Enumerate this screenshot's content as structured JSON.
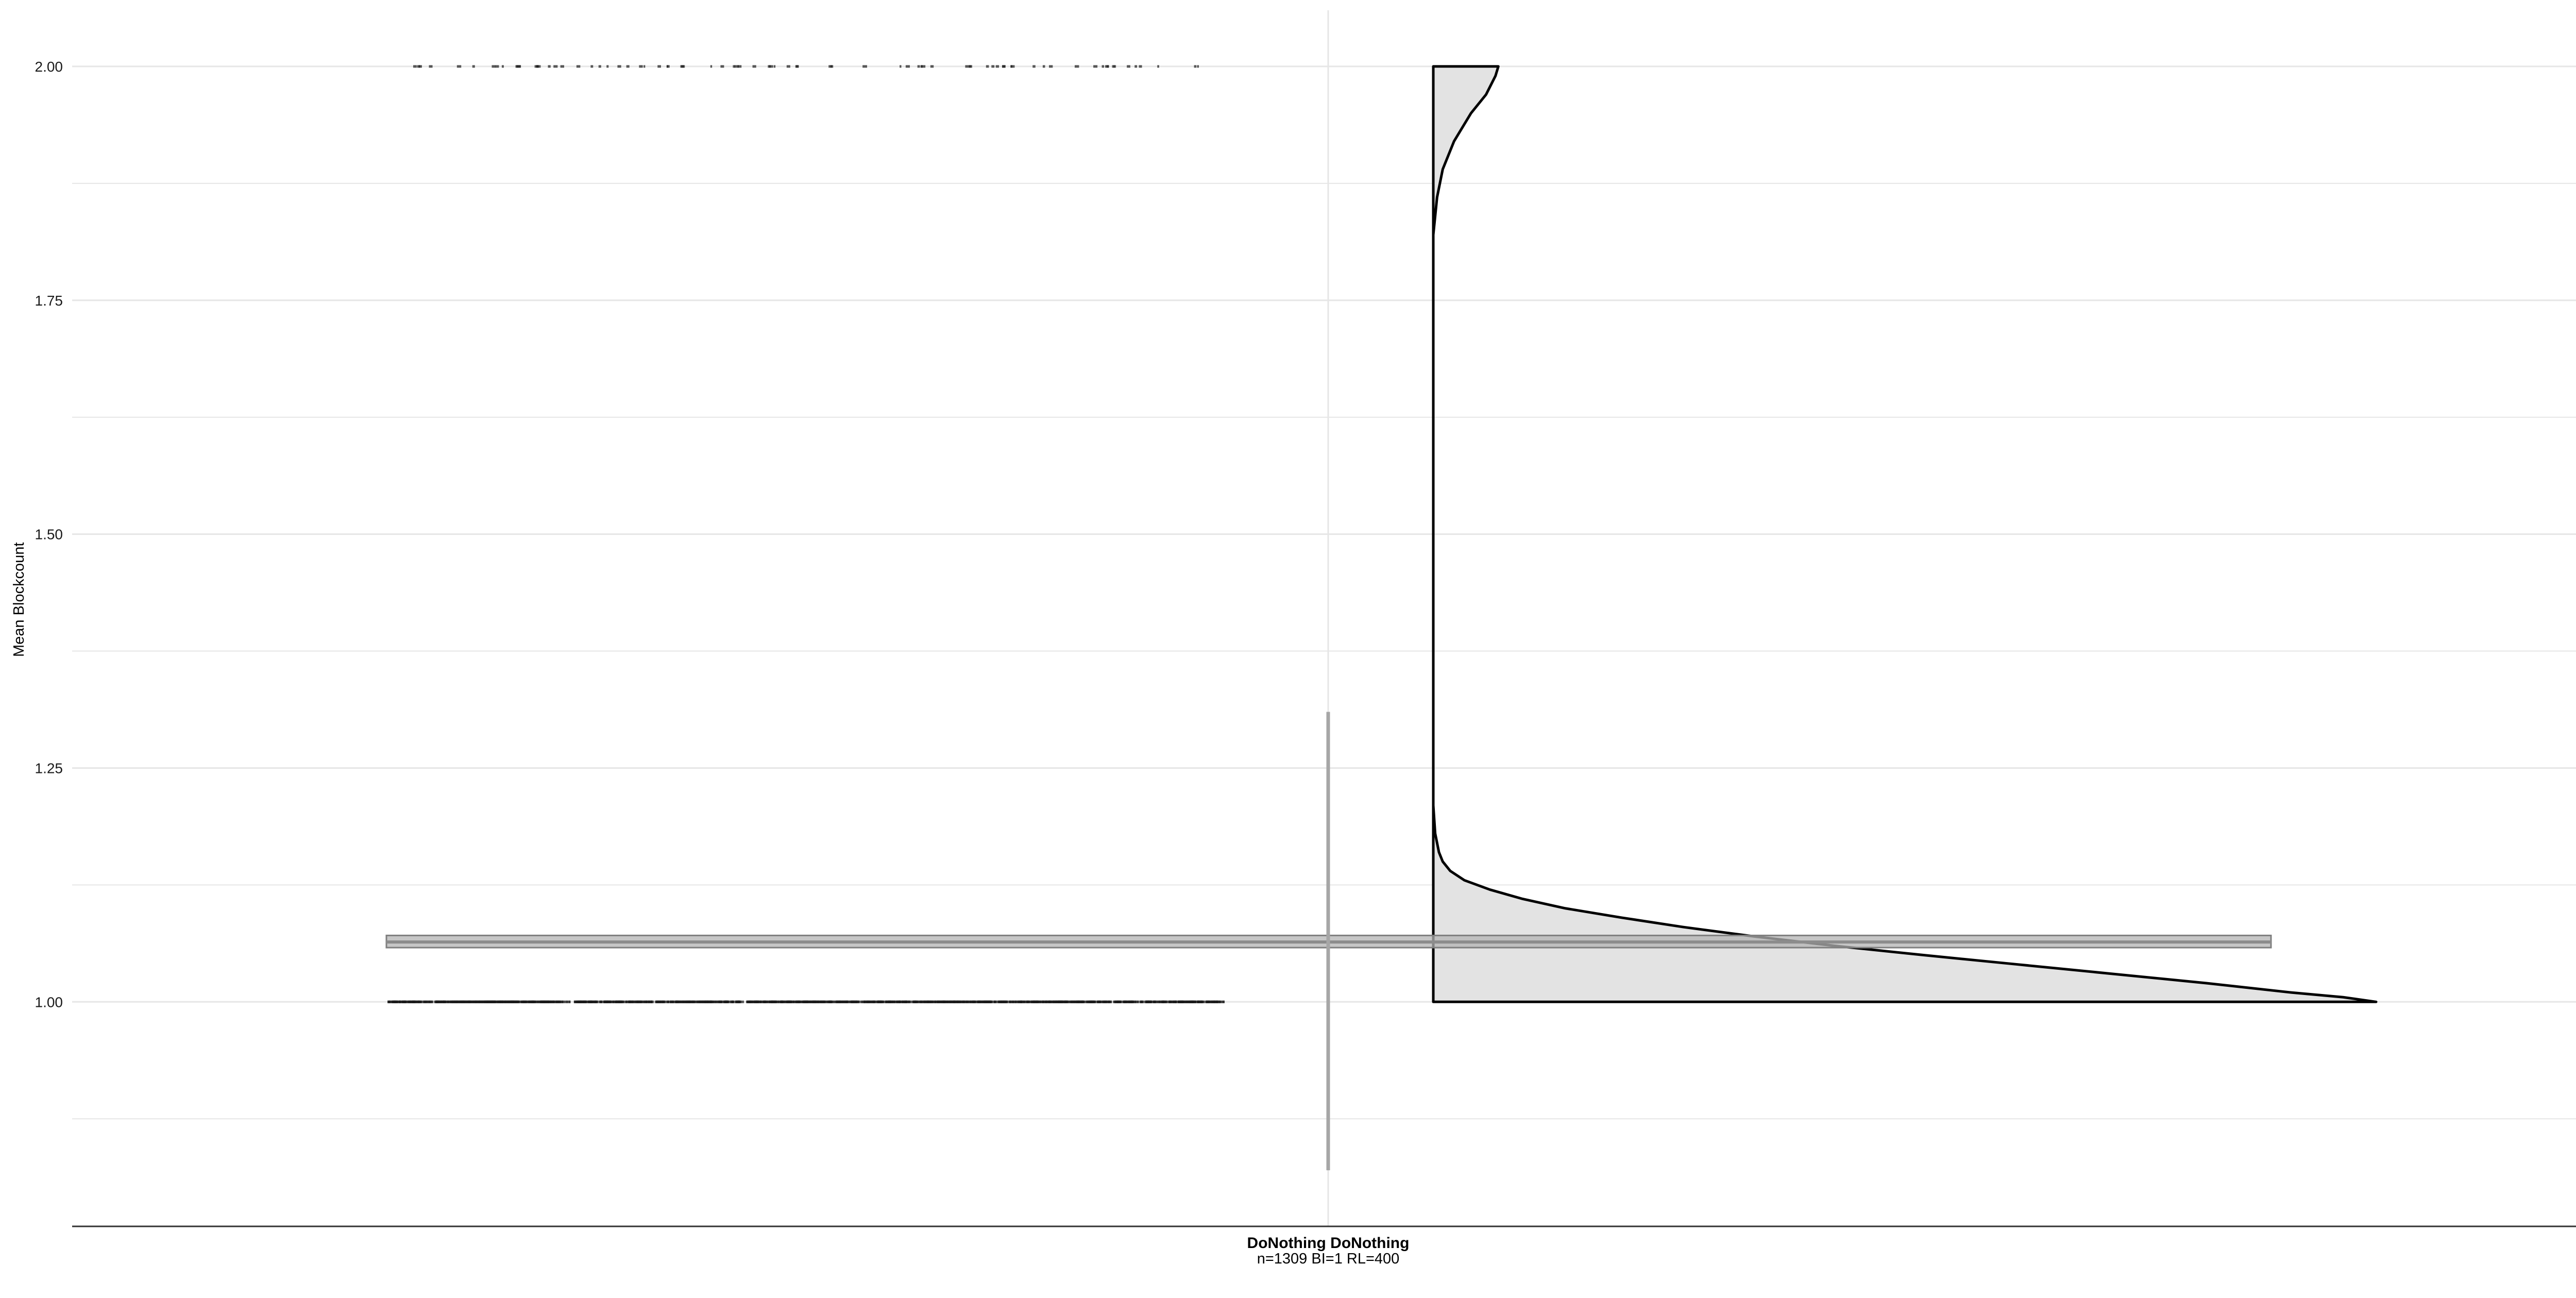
{
  "chart_data": {
    "type": "raincloud",
    "title": "",
    "ylabel": "Mean Blockcount",
    "xlabel": "",
    "ylim": [
      0.76,
      2.06
    ],
    "yticks": [
      1.0,
      1.25,
      1.5,
      1.75,
      2.0
    ],
    "ytick_labels": [
      "1.00",
      "1.25",
      "1.50",
      "1.75",
      "2.00"
    ],
    "grid": true,
    "categories": [
      {
        "label": "DoNothing DoNothing",
        "sublabel": "n=1309 BI=1 RL=400"
      }
    ],
    "summary": {
      "mean": 1.064,
      "ci_band": [
        1.058,
        1.071
      ],
      "errorbar": [
        0.82,
        1.31
      ]
    },
    "density": [
      [
        1.0,
        1.0
      ],
      [
        1.005,
        0.965
      ],
      [
        1.01,
        0.91
      ],
      [
        1.02,
        0.82
      ],
      [
        1.03,
        0.72
      ],
      [
        1.04,
        0.62
      ],
      [
        1.05,
        0.52
      ],
      [
        1.06,
        0.425
      ],
      [
        1.07,
        0.34
      ],
      [
        1.08,
        0.265
      ],
      [
        1.09,
        0.2
      ],
      [
        1.1,
        0.14
      ],
      [
        1.11,
        0.095
      ],
      [
        1.12,
        0.06
      ],
      [
        1.13,
        0.033
      ],
      [
        1.14,
        0.018
      ],
      [
        1.15,
        0.01
      ],
      [
        1.16,
        0.006
      ],
      [
        1.18,
        0.002
      ],
      [
        1.21,
        0.0
      ],
      [
        1.82,
        0.0
      ],
      [
        1.86,
        0.004
      ],
      [
        1.89,
        0.01
      ],
      [
        1.92,
        0.022
      ],
      [
        1.95,
        0.04
      ],
      [
        1.97,
        0.056
      ],
      [
        1.99,
        0.066
      ],
      [
        2.0,
        0.069
      ]
    ],
    "points": {
      "value_levels": [
        1.0,
        2.0
      ],
      "count_at_1": 1230,
      "count_at_2": 79
    },
    "colors": {
      "density_fill": "#e3e3e3",
      "density_stroke": "#000000",
      "band_fill": "#b3b3b3",
      "band_stroke": "#7f7f7f",
      "mean_line": "#8c8c8c",
      "errorbar": "#a6a6a6",
      "grid": "#e6e6e6",
      "points": "#1a1a1a"
    }
  }
}
